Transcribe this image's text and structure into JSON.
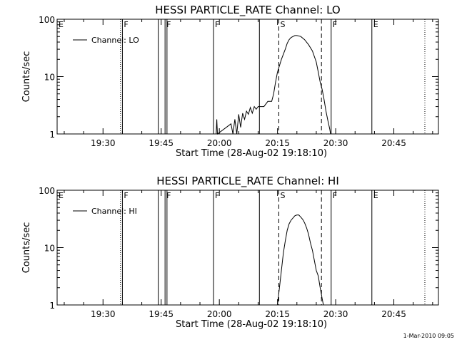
{
  "timestamp": "1-Mar-2010 09:05",
  "chart_data": [
    {
      "type": "line",
      "title": "HESSI PARTICLE_RATE Channel: LO",
      "xlabel": "Start Time (28-Aug-02 19:18:10)",
      "ylabel": "Counts/sec",
      "yscale": "log",
      "ylim": [
        1,
        100
      ],
      "xlim": [
        "19:18:10",
        "20:56:30"
      ],
      "grid": false,
      "legend_position": "top-left",
      "x_ticks": [
        "19:30",
        "19:45",
        "20:00",
        "20:15",
        "20:30",
        "20:45"
      ],
      "y_ticks": [
        "1",
        "10",
        "100"
      ],
      "series": [
        {
          "name": "Channel: LO",
          "x": [
            "19:59:10",
            "19:59:20",
            "19:59:30",
            "20:03:00",
            "20:03:30",
            "20:04:00",
            "20:04:30",
            "20:05:00",
            "20:05:30",
            "20:06:00",
            "20:06:30",
            "20:07:00",
            "20:07:30",
            "20:08:00",
            "20:08:30",
            "20:09:00",
            "20:09:30",
            "20:10:00",
            "20:10:30",
            "20:11:30",
            "20:12:30",
            "20:13:00",
            "20:13:30",
            "20:14:00",
            "20:14:30",
            "20:15:00",
            "20:16:00",
            "20:17:00",
            "20:17:30",
            "20:18:00",
            "20:18:30",
            "20:19:00",
            "20:19:30",
            "20:20:00",
            "20:21:00",
            "20:22:00",
            "20:23:00",
            "20:24:00",
            "20:25:00",
            "20:25:30",
            "20:26:00",
            "20:26:30",
            "20:27:00",
            "20:27:30",
            "20:28:00",
            "20:28:30",
            "20:28:40"
          ],
          "y": [
            1,
            1.8,
            1,
            1.5,
            1,
            1.8,
            1,
            2.2,
            1.3,
            2.3,
            1.8,
            2.5,
            2.2,
            2.9,
            2.3,
            3.0,
            2.7,
            3.0,
            3.0,
            3.0,
            3.7,
            3.7,
            3.7,
            5,
            8,
            12,
            20,
            30,
            38,
            44,
            48,
            50,
            52,
            52,
            50,
            44,
            36,
            28,
            18,
            12,
            8,
            6,
            4,
            2.5,
            1.7,
            1.2,
            1
          ]
        }
      ],
      "markers": [
        {
          "label": "E",
          "time": "19:18:10",
          "style": "solid"
        },
        {
          "label": "",
          "time": "19:34:30",
          "style": "dotted"
        },
        {
          "label": "F",
          "time": "19:35:00",
          "style": "solid"
        },
        {
          "label": "",
          "time": "19:44:15",
          "style": "solid"
        },
        {
          "label": "F",
          "time": "19:46:00",
          "style": "solid"
        },
        {
          "label": "",
          "time": "19:46:30",
          "style": "solid"
        },
        {
          "label": "F",
          "time": "19:58:30",
          "style": "solid"
        },
        {
          "label": "",
          "time": "20:10:20",
          "style": "solid"
        },
        {
          "label": "S",
          "time": "20:15:20",
          "style": "dashed"
        },
        {
          "label": "",
          "time": "20:26:20",
          "style": "dashed"
        },
        {
          "label": "F",
          "time": "20:28:50",
          "style": "solid"
        },
        {
          "label": "E",
          "time": "20:39:20",
          "style": "solid"
        },
        {
          "label": "",
          "time": "20:53:00",
          "style": "dotted"
        }
      ]
    },
    {
      "type": "line",
      "title": "HESSI PARTICLE_RATE Channel: HI",
      "xlabel": "Start Time (28-Aug-02 19:18:10)",
      "ylabel": "Counts/sec",
      "yscale": "log",
      "ylim": [
        1,
        100
      ],
      "xlim": [
        "19:18:10",
        "20:56:30"
      ],
      "grid": false,
      "legend_position": "top-left",
      "x_ticks": [
        "19:30",
        "19:45",
        "20:00",
        "20:15",
        "20:30",
        "20:45"
      ],
      "y_ticks": [
        "1",
        "10",
        "100"
      ],
      "series": [
        {
          "name": "Channel: HI",
          "x": [
            "20:15:00",
            "20:16:00",
            "20:16:30",
            "20:17:00",
            "20:17:30",
            "20:18:00",
            "20:18:30",
            "20:19:00",
            "20:19:30",
            "20:20:00",
            "20:20:30",
            "20:21:00",
            "20:21:30",
            "20:22:00",
            "20:22:30",
            "20:23:00",
            "20:23:30",
            "20:24:00",
            "20:24:30",
            "20:25:00",
            "20:25:30",
            "20:26:00",
            "20:26:30",
            "20:26:50"
          ],
          "y": [
            1,
            4,
            8,
            13,
            20,
            26,
            30,
            33,
            36,
            37,
            37,
            34,
            31,
            27,
            22,
            17,
            12,
            9,
            6,
            4,
            3.2,
            2,
            1.3,
            1
          ]
        }
      ],
      "markers": [
        {
          "label": "E",
          "time": "19:18:10",
          "style": "solid"
        },
        {
          "label": "",
          "time": "19:34:30",
          "style": "dotted"
        },
        {
          "label": "F",
          "time": "19:35:00",
          "style": "solid"
        },
        {
          "label": "",
          "time": "19:44:15",
          "style": "solid"
        },
        {
          "label": "F",
          "time": "19:46:00",
          "style": "solid"
        },
        {
          "label": "",
          "time": "19:46:30",
          "style": "solid"
        },
        {
          "label": "F",
          "time": "19:58:30",
          "style": "solid"
        },
        {
          "label": "",
          "time": "20:10:20",
          "style": "solid"
        },
        {
          "label": "S",
          "time": "20:15:20",
          "style": "dashed"
        },
        {
          "label": "",
          "time": "20:26:20",
          "style": "dashed"
        },
        {
          "label": "F",
          "time": "20:28:50",
          "style": "solid"
        },
        {
          "label": "E",
          "time": "20:39:20",
          "style": "solid"
        },
        {
          "label": "",
          "time": "20:53:00",
          "style": "dotted"
        }
      ]
    }
  ]
}
